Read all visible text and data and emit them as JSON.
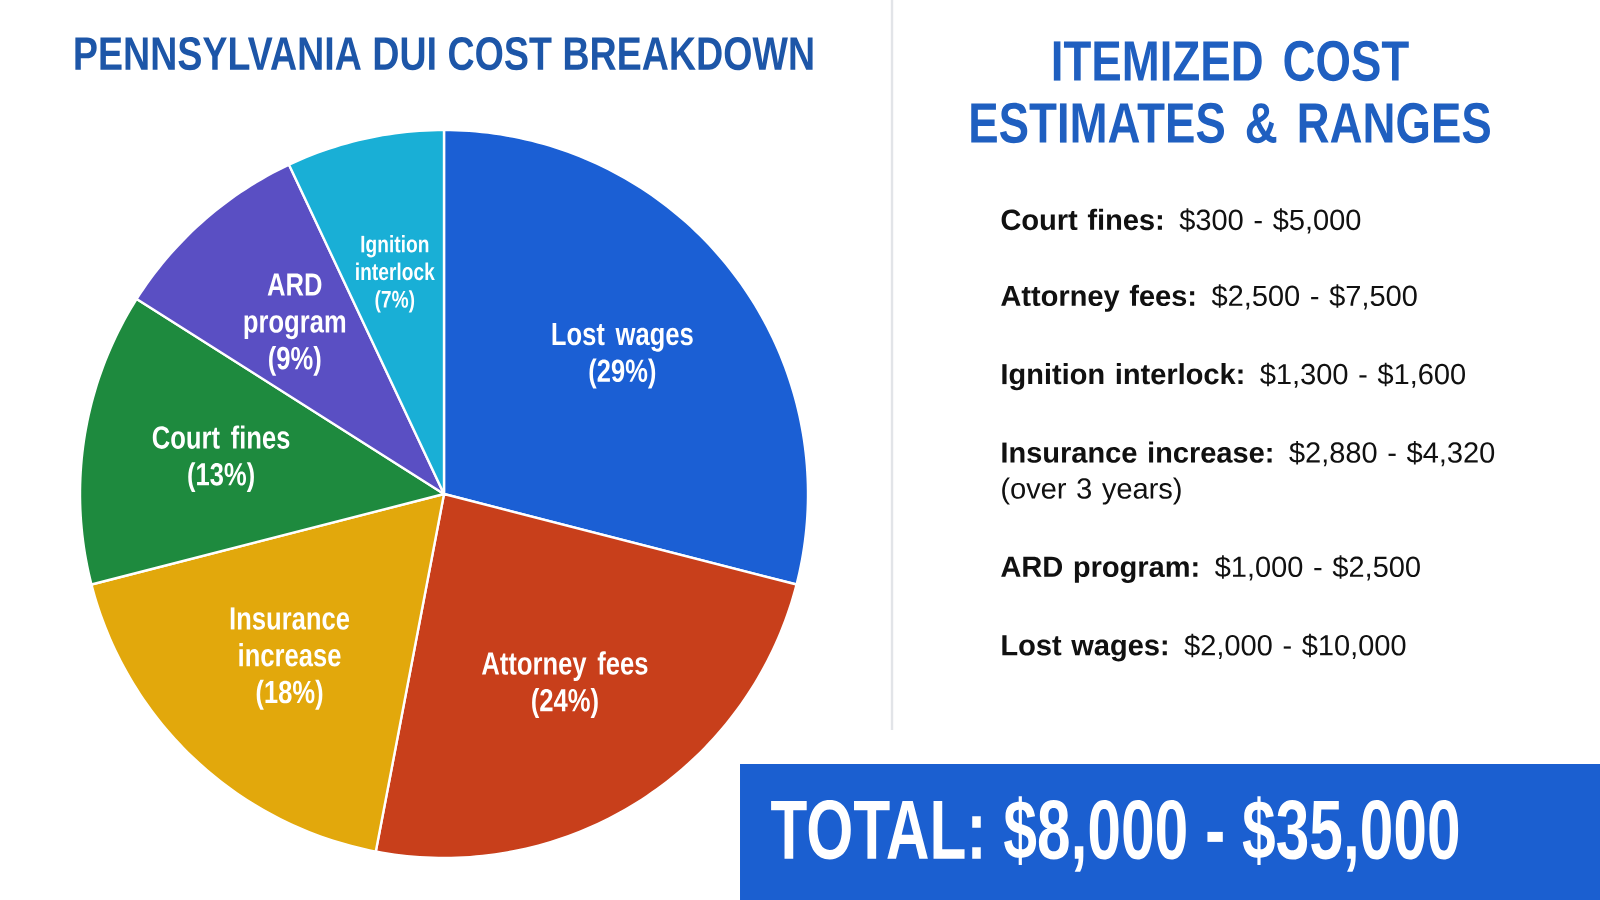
{
  "chart_data": [
    {
      "type": "pie",
      "title": "PENNSYLVANIA DUI COST BREAKDOWN",
      "categories": [
        "Lost wages",
        "Attorney fees",
        "Insurance increase",
        "Court fines",
        "ARD program",
        "Ignition interlock"
      ],
      "values": [
        29,
        24,
        18,
        13,
        9,
        7
      ],
      "value_labels": [
        "(29%)",
        "(24%)",
        "(18%)",
        "(13%)",
        "(9%)",
        "(7%)"
      ],
      "colors": [
        "#1b5fd4",
        "#c83f1b",
        "#e2a80c",
        "#1e8a3e",
        "#5a4fc3",
        "#19afd6"
      ]
    },
    {
      "type": "other",
      "title": "ITEMIZED COST ESTIMATES & RANGES",
      "annotations": [
        "**Court fines:** $300 - $5,000",
        "**Attorney fees:** $2,500 - $7,500",
        "**Ignition interlock:** $1,300 - $1,600",
        "**Insurance increase:** $2,880 - $4,320 (over 3 years)",
        "**ARD program:** $1,000 - $2,500",
        "**Lost wages:** $2,000 - $10,000"
      ]
    },
    {
      "type": "other",
      "title": "TOTAL: $8,000 - $35,000"
    }
  ]
}
